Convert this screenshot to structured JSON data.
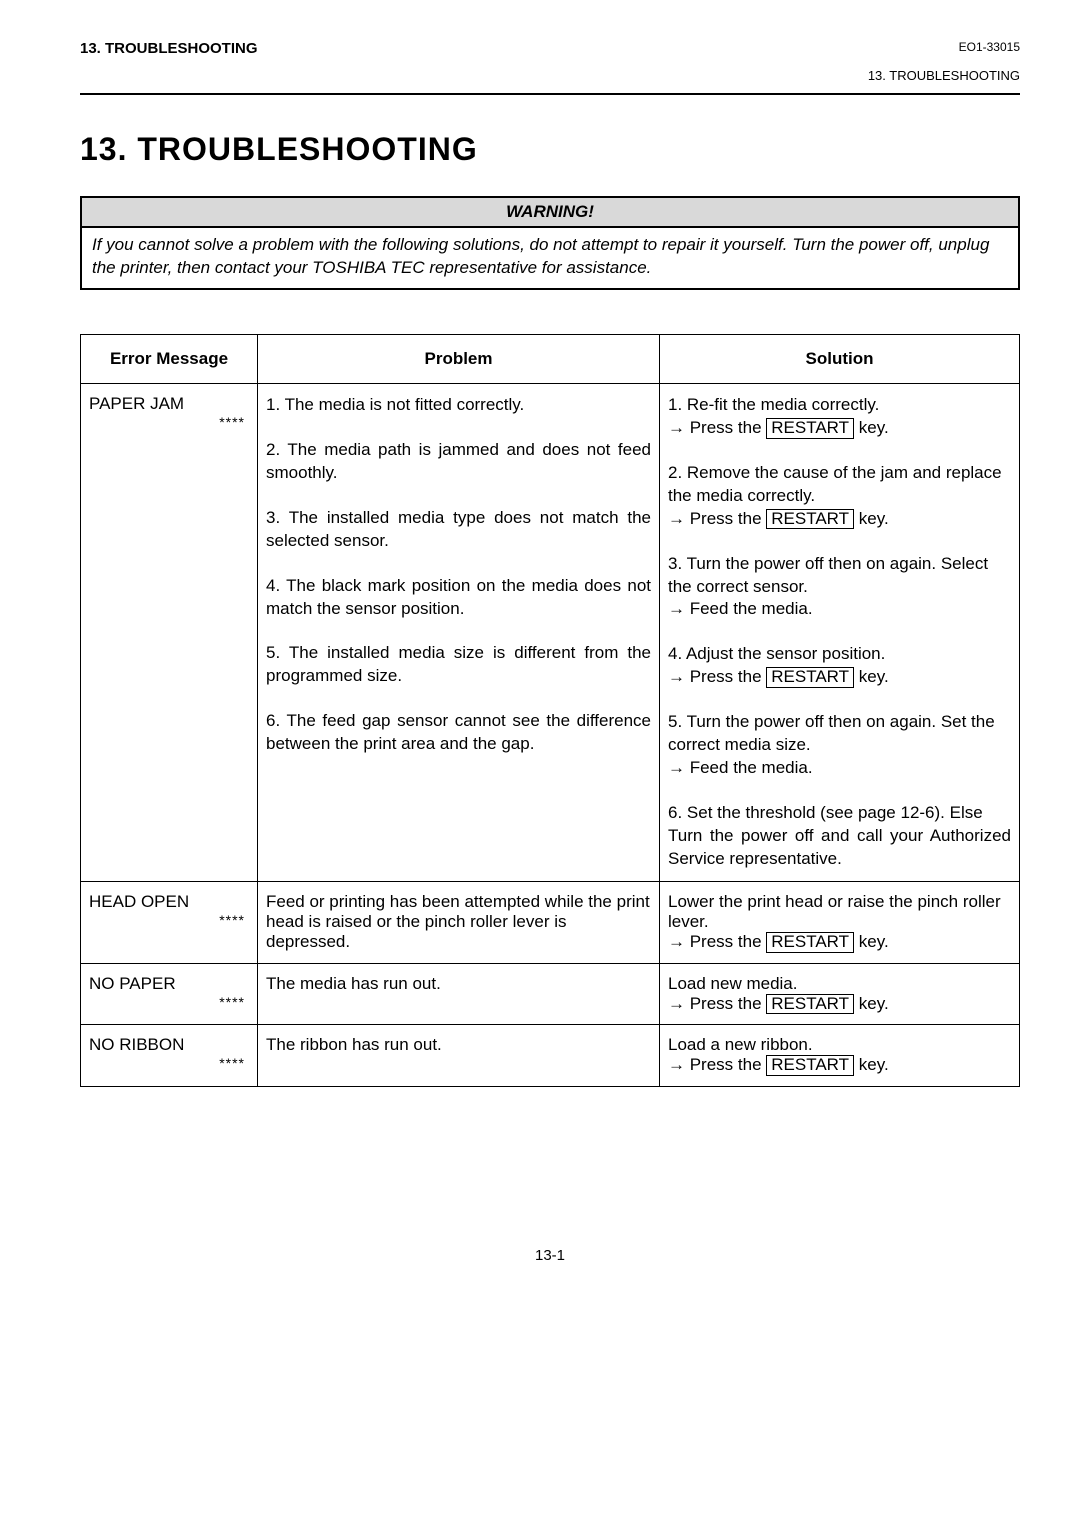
{
  "header": {
    "left": "13. TROUBLESHOOTING",
    "doc_code": "EO1-33015",
    "right_sub": "13. TROUBLESHOOTING"
  },
  "title": "13.  TROUBLESHOOTING",
  "warning": {
    "label": "WARNING!",
    "body": "If you cannot solve a problem with the following solutions, do not attempt to repair it yourself.  Turn the power off, unplug the printer, then contact your TOSHIBA TEC representative for assistance."
  },
  "table": {
    "headers": [
      "Error Message",
      "Problem",
      "Solution"
    ],
    "restart_key": "RESTART",
    "rows": [
      {
        "error": "PAPER JAM",
        "stars": "****",
        "items": [
          {
            "problem": "1.  The media is not fitted correctly.",
            "solution_pre": "1.  Re-fit the media correctly.",
            "solution_action_prefix": "→ Press the ",
            "solution_action_suffix": " key."
          },
          {
            "problem": "2.  The media path is jammed and does not feed smoothly.",
            "solution_pre": "2.  Remove the cause of the jam and replace the media correctly.",
            "solution_action_prefix": "→ Press the ",
            "solution_action_suffix": " key."
          },
          {
            "problem": "3.  The installed media type does not match the selected sensor.",
            "solution_pre": "3.  Turn the power off then on again. Select the correct sensor.",
            "solution_action_plain": "→ Feed the media."
          },
          {
            "problem": "4.  The black mark position on the media does not match the sensor position.",
            "solution_pre": "4.  Adjust the sensor position.",
            "solution_action_prefix": "→ Press the ",
            "solution_action_suffix": " key."
          },
          {
            "problem": "5.  The installed media size is different from the programmed size.",
            "solution_pre": "5.  Turn the power off then on again. Set the correct media size.",
            "solution_action_plain": "→   Feed the media."
          },
          {
            "problem": "6. The feed gap sensor cannot see the difference between the print area and the gap.",
            "solution_pre": "6.  Set the threshold (see page 12-6). Else",
            "solution_extra": "Turn the power off and call your Authorized Service representative."
          }
        ]
      },
      {
        "error": "HEAD OPEN",
        "stars": "****",
        "problem": "Feed or printing has been attempted while the print head is raised or the pinch roller lever is depressed.",
        "solution_pre": "Lower the print head or raise the pinch roller lever.",
        "solution_action_prefix": "→ Press the ",
        "solution_action_suffix": " key."
      },
      {
        "error": "NO PAPER",
        "stars": "****",
        "problem": "The media has run out.",
        "solution_pre": "Load new media.",
        "solution_action_prefix": "→ Press the ",
        "solution_action_suffix": " key."
      },
      {
        "error": "NO RIBBON",
        "stars": "****",
        "problem": "The ribbon has run out.",
        "solution_pre": "Load a new ribbon.",
        "solution_action_prefix": "→ Press the ",
        "solution_action_suffix": " key."
      }
    ]
  },
  "footer": "13-1"
}
